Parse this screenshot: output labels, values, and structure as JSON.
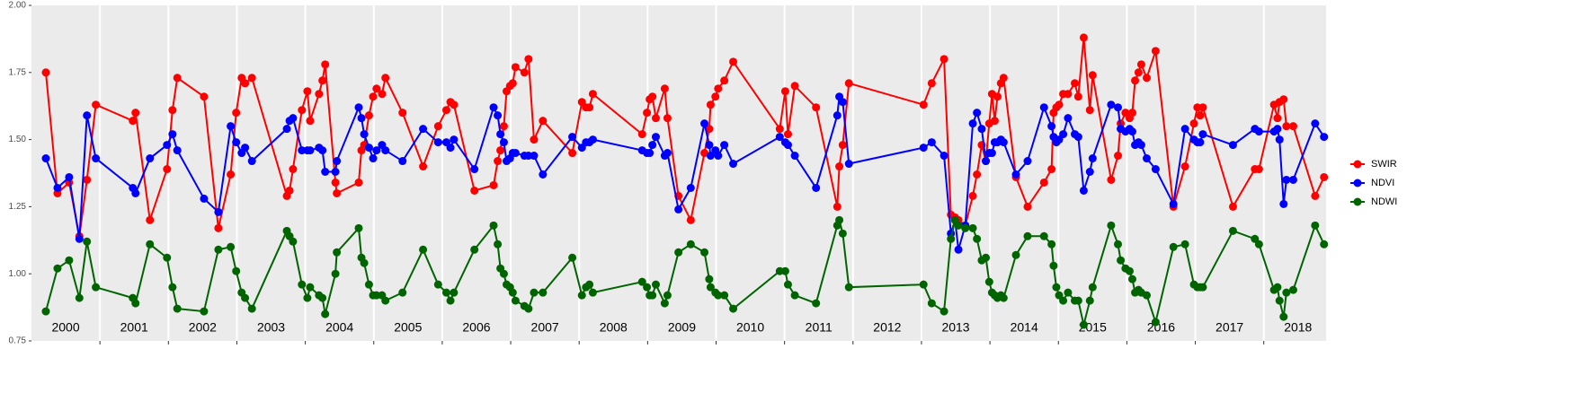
{
  "chart_data": {
    "type": "line",
    "xlim": [
      2000,
      2018.91
    ],
    "ylim": [
      0.75,
      2.0
    ],
    "yticks": [
      {
        "value": 0.75,
        "label": "0.75"
      },
      {
        "value": 1.0,
        "label": "1.00"
      },
      {
        "value": 1.25,
        "label": "1.25"
      },
      {
        "value": 1.5,
        "label": "1.50"
      },
      {
        "value": 1.75,
        "label": "1.75"
      },
      {
        "value": 2.0,
        "label": "2.00"
      }
    ],
    "year_lines": [
      2001,
      2002,
      2003,
      2004,
      2005,
      2006,
      2007,
      2008,
      2009,
      2010,
      2011,
      2012,
      2013,
      2014,
      2015,
      2016,
      2017,
      2018
    ],
    "year_labels": [
      {
        "value": 2000.5,
        "label": "2000"
      },
      {
        "value": 2001.5,
        "label": "2001"
      },
      {
        "value": 2002.5,
        "label": "2002"
      },
      {
        "value": 2003.5,
        "label": "2003"
      },
      {
        "value": 2004.5,
        "label": "2004"
      },
      {
        "value": 2005.5,
        "label": "2005"
      },
      {
        "value": 2006.5,
        "label": "2006"
      },
      {
        "value": 2007.5,
        "label": "2007"
      },
      {
        "value": 2008.5,
        "label": "2008"
      },
      {
        "value": 2009.5,
        "label": "2009"
      },
      {
        "value": 2010.5,
        "label": "2010"
      },
      {
        "value": 2011.5,
        "label": "2011"
      },
      {
        "value": 2012.5,
        "label": "2012"
      },
      {
        "value": 2013.5,
        "label": "2013"
      },
      {
        "value": 2014.5,
        "label": "2014"
      },
      {
        "value": 2015.5,
        "label": "2015"
      },
      {
        "value": 2016.5,
        "label": "2016"
      },
      {
        "value": 2017.5,
        "label": "2017"
      },
      {
        "value": 2018.5,
        "label": "2018"
      }
    ],
    "legend": "right",
    "x": [
      2000.21,
      2000.38,
      2000.55,
      2000.7,
      2000.81,
      2000.94,
      2001.48,
      2001.52,
      2001.73,
      2001.98,
      2002.06,
      2002.13,
      2002.52,
      2002.73,
      2002.91,
      2002.99,
      2003.07,
      2003.12,
      2003.22,
      2003.73,
      2003.77,
      2003.82,
      2003.95,
      2004.03,
      2004.07,
      2004.2,
      2004.25,
      2004.29,
      2004.44,
      2004.46,
      2004.78,
      2004.82,
      2004.86,
      2004.93,
      2004.99,
      2005.04,
      2005.12,
      2005.17,
      2005.42,
      2005.72,
      2005.94,
      2006.06,
      2006.12,
      2006.17,
      2006.47,
      2006.75,
      2006.81,
      2006.85,
      2006.9,
      2006.94,
      2006.99,
      2007.03,
      2007.07,
      2007.2,
      2007.26,
      2007.34,
      2007.47,
      2007.9,
      2008.04,
      2008.1,
      2008.15,
      2008.2,
      2008.92,
      2008.99,
      2009.03,
      2009.07,
      2009.12,
      2009.25,
      2009.29,
      2009.45,
      2009.63,
      2009.83,
      2009.9,
      2009.92,
      2009.99,
      2010.03,
      2010.12,
      2010.25,
      2010.93,
      2011.01,
      2011.05,
      2011.15,
      2011.46,
      2011.77,
      2011.8,
      2011.85,
      2011.94,
      2013.03,
      2013.15,
      2013.33,
      2013.43,
      2013.49,
      2013.54,
      2013.64,
      2013.75,
      2013.81,
      2013.88,
      2013.94,
      2013.99,
      2014.03,
      2014.07,
      2014.11,
      2014.16,
      2014.2,
      2014.38,
      2014.55,
      2014.79,
      2014.9,
      2014.93,
      2014.97,
      2015.01,
      2015.07,
      2015.14,
      2015.24,
      2015.29,
      2015.37,
      2015.46,
      2015.5,
      2015.77,
      2015.87,
      2015.91,
      2015.98,
      2016.04,
      2016.08,
      2016.12,
      2016.17,
      2016.21,
      2016.29,
      2016.42,
      2016.68,
      2016.85,
      2016.98,
      2017.03,
      2017.07,
      2017.11,
      2017.55,
      2017.87,
      2017.93,
      2018.15,
      2018.2,
      2018.23,
      2018.29,
      2018.33,
      2018.43,
      2018.75,
      2018.88
    ],
    "series": [
      {
        "name": "SWIR",
        "color": "#ff0000",
        "values": [
          1.75,
          1.3,
          1.34,
          1.14,
          1.35,
          1.63,
          1.57,
          1.6,
          1.2,
          1.39,
          1.61,
          1.73,
          1.66,
          1.17,
          1.37,
          1.6,
          1.73,
          1.71,
          1.73,
          1.29,
          1.31,
          1.39,
          1.61,
          1.68,
          1.57,
          1.67,
          1.72,
          1.78,
          1.34,
          1.3,
          1.34,
          1.46,
          1.48,
          1.59,
          1.66,
          1.69,
          1.67,
          1.73,
          1.6,
          1.4,
          1.55,
          1.61,
          1.64,
          1.63,
          1.31,
          1.33,
          1.42,
          1.46,
          1.55,
          1.68,
          1.7,
          1.71,
          1.77,
          1.75,
          1.8,
          1.5,
          1.57,
          1.45,
          1.64,
          1.62,
          1.62,
          1.67,
          1.52,
          1.6,
          1.65,
          1.66,
          1.58,
          1.69,
          1.58,
          1.29,
          1.2,
          1.45,
          1.54,
          1.63,
          1.66,
          1.69,
          1.72,
          1.79,
          1.54,
          1.68,
          1.52,
          1.7,
          1.62,
          1.25,
          1.4,
          1.48,
          1.71,
          1.63,
          1.71,
          1.8,
          1.22,
          1.21,
          1.2,
          1.18,
          1.29,
          1.37,
          1.48,
          1.42,
          1.56,
          1.67,
          1.57,
          1.66,
          1.71,
          1.73,
          1.36,
          1.25,
          1.34,
          1.39,
          1.6,
          1.62,
          1.63,
          1.67,
          1.67,
          1.71,
          1.66,
          1.88,
          1.61,
          1.74,
          1.35,
          1.44,
          1.56,
          1.6,
          1.58,
          1.6,
          1.72,
          1.75,
          1.78,
          1.73,
          1.83,
          1.25,
          1.4,
          1.56,
          1.62,
          1.59,
          1.62,
          1.25,
          1.39,
          1.39,
          1.63,
          1.58,
          1.64,
          1.65,
          1.55,
          1.55,
          1.29,
          1.36
        ]
      },
      {
        "name": "NDVI",
        "color": "#0000ff",
        "values": [
          1.43,
          1.32,
          1.36,
          1.13,
          1.59,
          1.43,
          1.32,
          1.3,
          1.43,
          1.48,
          1.52,
          1.46,
          1.28,
          1.23,
          1.55,
          1.49,
          1.45,
          1.47,
          1.42,
          1.54,
          1.57,
          1.58,
          1.46,
          1.46,
          1.46,
          1.47,
          1.46,
          1.38,
          1.38,
          1.42,
          1.62,
          1.58,
          1.52,
          1.47,
          1.43,
          1.46,
          1.48,
          1.46,
          1.42,
          1.54,
          1.49,
          1.49,
          1.47,
          1.5,
          1.39,
          1.62,
          1.59,
          1.52,
          1.49,
          1.42,
          1.43,
          1.45,
          1.45,
          1.44,
          1.44,
          1.44,
          1.37,
          1.51,
          1.47,
          1.49,
          1.49,
          1.5,
          1.46,
          1.45,
          1.45,
          1.48,
          1.51,
          1.44,
          1.45,
          1.24,
          1.32,
          1.56,
          1.48,
          1.44,
          1.46,
          1.44,
          1.48,
          1.41,
          1.51,
          1.49,
          1.48,
          1.44,
          1.32,
          1.59,
          1.66,
          1.64,
          1.41,
          1.47,
          1.49,
          1.44,
          1.15,
          1.2,
          1.09,
          1.18,
          1.56,
          1.6,
          1.54,
          1.42,
          1.45,
          1.45,
          1.49,
          1.49,
          1.5,
          1.49,
          1.37,
          1.42,
          1.62,
          1.55,
          1.51,
          1.49,
          1.5,
          1.52,
          1.58,
          1.52,
          1.51,
          1.31,
          1.38,
          1.43,
          1.63,
          1.62,
          1.54,
          1.53,
          1.54,
          1.53,
          1.48,
          1.49,
          1.48,
          1.43,
          1.39,
          1.26,
          1.54,
          1.5,
          1.49,
          1.49,
          1.52,
          1.48,
          1.54,
          1.53,
          1.53,
          1.54,
          1.5,
          1.26,
          1.35,
          1.35,
          1.56,
          1.51
        ]
      },
      {
        "name": "NDWI",
        "color": "#006400",
        "values": [
          0.86,
          1.02,
          1.05,
          0.91,
          1.12,
          0.95,
          0.91,
          0.89,
          1.11,
          1.06,
          0.95,
          0.87,
          0.86,
          1.09,
          1.1,
          1.01,
          0.93,
          0.91,
          0.87,
          1.16,
          1.14,
          1.12,
          0.96,
          0.91,
          0.95,
          0.92,
          0.91,
          0.85,
          1.0,
          1.08,
          1.17,
          1.06,
          1.04,
          0.96,
          0.92,
          0.92,
          0.92,
          0.9,
          0.93,
          1.09,
          0.96,
          0.93,
          0.9,
          0.93,
          1.09,
          1.18,
          1.11,
          1.02,
          1.0,
          0.96,
          0.95,
          0.93,
          0.9,
          0.88,
          0.87,
          0.93,
          0.93,
          1.06,
          0.92,
          0.95,
          0.96,
          0.93,
          0.97,
          0.95,
          0.92,
          0.92,
          0.96,
          0.89,
          0.92,
          1.08,
          1.11,
          1.08,
          0.98,
          0.95,
          0.93,
          0.92,
          0.92,
          0.87,
          1.01,
          1.01,
          0.96,
          0.92,
          0.89,
          1.18,
          1.2,
          1.15,
          0.95,
          0.96,
          0.89,
          0.86,
          1.13,
          1.2,
          1.18,
          1.17,
          1.17,
          1.13,
          1.05,
          1.06,
          0.97,
          0.93,
          0.92,
          0.91,
          0.92,
          0.91,
          1.07,
          1.14,
          1.14,
          1.11,
          1.03,
          0.95,
          0.92,
          0.9,
          0.93,
          0.9,
          0.9,
          0.81,
          0.9,
          0.95,
          1.18,
          1.11,
          1.05,
          1.02,
          1.01,
          0.98,
          0.93,
          0.94,
          0.93,
          0.92,
          0.82,
          1.1,
          1.11,
          0.96,
          0.95,
          0.95,
          0.95,
          1.16,
          1.13,
          1.11,
          0.94,
          0.95,
          0.9,
          0.84,
          0.93,
          0.94,
          1.18,
          1.11
        ]
      }
    ]
  }
}
